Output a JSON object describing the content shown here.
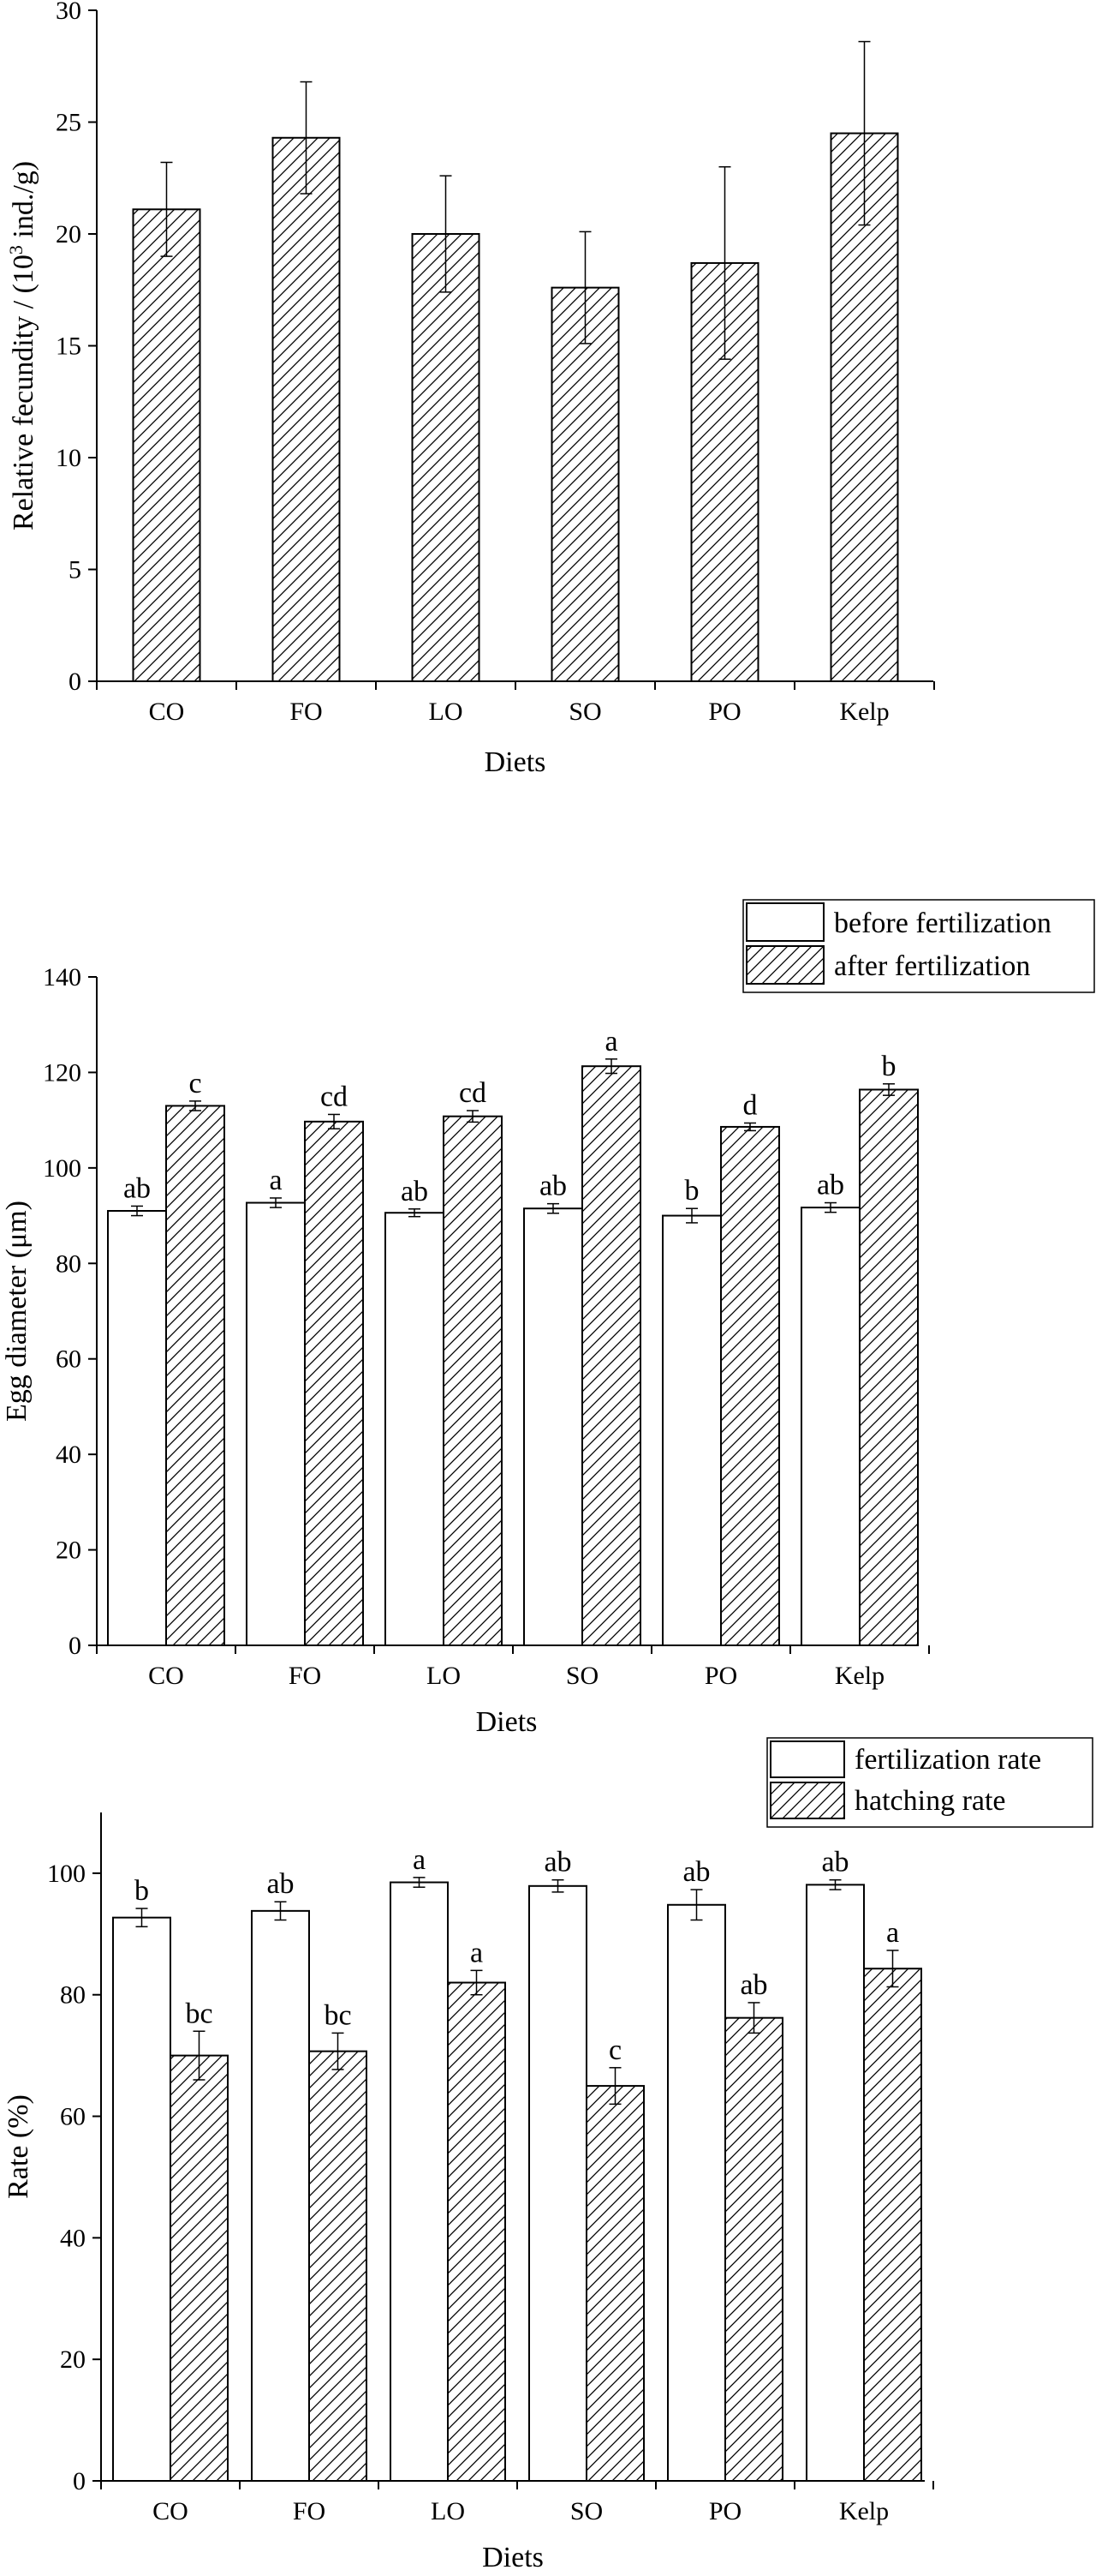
{
  "chart_data": [
    {
      "type": "bar",
      "categories": [
        "CO",
        "FO",
        "LO",
        "SO",
        "PO",
        "Kelp"
      ],
      "series": [
        {
          "values": [
            21.1,
            24.3,
            20.0,
            17.6,
            18.7,
            24.5
          ],
          "errors": [
            2.1,
            2.5,
            2.6,
            2.5,
            4.3,
            4.1
          ],
          "pattern": "hatched"
        }
      ],
      "xlabel": "Diets",
      "ylabel_prefix": "Relative fecundity / (10",
      "ylabel_sup": "3",
      "ylabel_suffix": " ind./g)",
      "ylim": [
        0,
        30
      ],
      "yticks": [
        0,
        5,
        10,
        15,
        20,
        25,
        30
      ],
      "grid": false
    },
    {
      "type": "bar",
      "categories": [
        "CO",
        "FO",
        "LO",
        "SO",
        "PO",
        "Kelp"
      ],
      "series": [
        {
          "name": "before fertilization",
          "pattern": "white",
          "values": [
            91.0,
            92.7,
            90.6,
            91.5,
            90.0,
            91.7
          ],
          "errors": [
            1.0,
            1.0,
            0.8,
            1.0,
            1.5,
            1.0
          ],
          "labels": [
            "ab",
            "a",
            "ab",
            "ab",
            "b",
            "ab"
          ]
        },
        {
          "name": "after fertilization",
          "pattern": "hatched",
          "values": [
            113.0,
            109.7,
            110.8,
            121.3,
            108.6,
            116.4
          ],
          "errors": [
            1.0,
            1.5,
            1.2,
            1.5,
            0.8,
            1.2
          ],
          "labels": [
            "c",
            "cd",
            "cd",
            "a",
            "d",
            "b"
          ]
        }
      ],
      "xlabel": "Diets",
      "ylabel": "Egg diameter (μm)",
      "ylim": [
        0,
        140
      ],
      "yticks": [
        0,
        20,
        40,
        60,
        80,
        100,
        120,
        140
      ],
      "legend_position": "top-right",
      "grid": false
    },
    {
      "type": "bar",
      "categories": [
        "CO",
        "FO",
        "LO",
        "SO",
        "PO",
        "Kelp"
      ],
      "series": [
        {
          "name": "fertilization rate",
          "pattern": "white",
          "values": [
            92.7,
            93.8,
            98.5,
            97.9,
            94.8,
            98.1
          ],
          "errors": [
            1.5,
            1.5,
            0.8,
            1.0,
            2.5,
            0.8
          ],
          "labels": [
            "b",
            "ab",
            "a",
            "ab",
            "ab",
            "ab"
          ]
        },
        {
          "name": "hatching rate",
          "pattern": "hatched",
          "values": [
            70.0,
            70.7,
            82.0,
            65.0,
            76.2,
            84.3
          ],
          "errors": [
            4.0,
            3.0,
            2.0,
            3.0,
            2.5,
            3.0
          ],
          "labels": [
            "bc",
            "bc",
            "a",
            "c",
            "ab",
            "a"
          ]
        }
      ],
      "xlabel": "Diets",
      "ylabel": "Rate (%)",
      "ylim": [
        0,
        110
      ],
      "yticks": [
        0,
        20,
        40,
        60,
        80,
        100
      ],
      "legend_position": "top-right",
      "grid": false
    }
  ]
}
